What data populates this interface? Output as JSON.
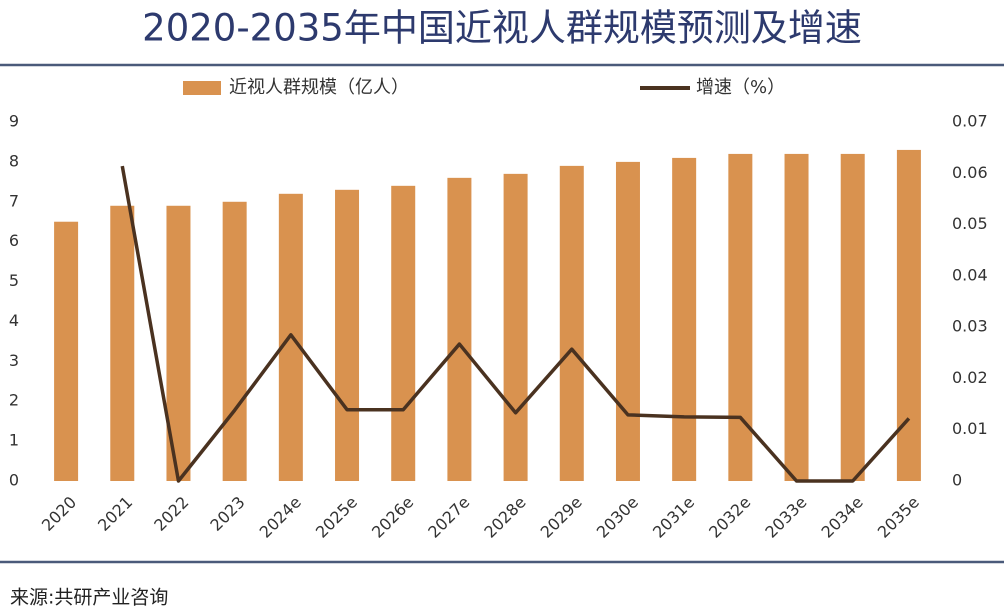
{
  "chart_data": {
    "type": "bar_line",
    "title": "2020-2035年中国近视人群规模预测及增速",
    "source": "来源:共研产业咨询",
    "categories": [
      "2020",
      "2021",
      "2022",
      "2023",
      "2024e",
      "2025e",
      "2026e",
      "2027e",
      "2028e",
      "2029e",
      "2030e",
      "2031e",
      "2032e",
      "2033e",
      "2034e",
      "2035e"
    ],
    "series": [
      {
        "name": "近视人群规模（亿人）",
        "type": "bar",
        "color": "#d9924f",
        "values": [
          6.5,
          6.9,
          6.9,
          7.0,
          7.2,
          7.3,
          7.4,
          7.6,
          7.7,
          7.9,
          8.0,
          8.1,
          8.2,
          8.2,
          8.2,
          8.3
        ]
      },
      {
        "name": "增速（%）",
        "type": "line",
        "axis": "y2",
        "color": "#4a3220",
        "values": [
          null,
          0.0614,
          0,
          0.0138,
          0.0285,
          0.0139,
          0.0139,
          0.0267,
          0.0133,
          0.0257,
          0.0129,
          0.0125,
          0.0124,
          0,
          0,
          0.0122
        ]
      }
    ],
    "ylim": [
      0,
      9
    ],
    "yticks": [
      0,
      1,
      2,
      3,
      4,
      5,
      6,
      7,
      8,
      9
    ],
    "y2lim": [
      0,
      0.07
    ],
    "y2ticks": [
      0,
      0.01,
      0.02,
      0.03,
      0.04,
      0.05,
      0.06,
      0.07
    ],
    "grid": false
  }
}
